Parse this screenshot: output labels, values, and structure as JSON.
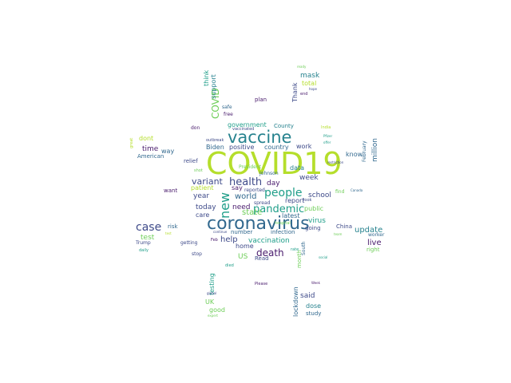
{
  "palette": {
    "purple": "#481a6c",
    "indigo": "#3e4a89",
    "blue": "#31688e",
    "teal": "#26828e",
    "green": "#1f9e89",
    "lime": "#6ece58",
    "yellowgreen": "#b5de2b",
    "yellow": "#fde725"
  },
  "words": [
    {
      "text": "COVID19",
      "color": "yellowgreen"
    },
    {
      "text": "coronavirus",
      "color": "blue"
    },
    {
      "text": "vaccine",
      "color": "teal"
    },
    {
      "text": "case",
      "color": "indigo"
    },
    {
      "text": "new",
      "color": "green"
    },
    {
      "text": "people",
      "color": "green"
    },
    {
      "text": "pandemic",
      "color": "green"
    },
    {
      "text": "health",
      "color": "indigo"
    },
    {
      "text": "death",
      "color": "purple"
    },
    {
      "text": "COVID",
      "color": "lime"
    },
    {
      "text": "variant",
      "color": "indigo"
    },
    {
      "text": "test",
      "color": "lime"
    },
    {
      "text": "vaccination",
      "color": "green"
    },
    {
      "text": "help",
      "color": "indigo"
    },
    {
      "text": "update",
      "color": "teal"
    },
    {
      "text": "live",
      "color": "purple"
    },
    {
      "text": "world",
      "color": "blue"
    },
    {
      "text": "state",
      "color": "lime"
    },
    {
      "text": "need",
      "color": "purple"
    },
    {
      "text": "today",
      "color": "indigo"
    },
    {
      "text": "year",
      "color": "indigo"
    },
    {
      "text": "mask",
      "color": "teal"
    },
    {
      "text": "school",
      "color": "indigo"
    },
    {
      "text": "virus",
      "color": "green"
    },
    {
      "text": "week",
      "color": "indigo"
    },
    {
      "text": "day",
      "color": "purple"
    },
    {
      "text": "report",
      "color": "indigo"
    },
    {
      "text": "data",
      "color": "teal"
    },
    {
      "text": "public",
      "color": "lime"
    },
    {
      "text": "government",
      "color": "green"
    },
    {
      "text": "positive",
      "color": "indigo"
    },
    {
      "text": "Biden",
      "color": "blue"
    },
    {
      "text": "work",
      "color": "indigo"
    },
    {
      "text": "country",
      "color": "blue"
    },
    {
      "text": "time",
      "color": "purple"
    },
    {
      "text": "dont",
      "color": "yellowgreen"
    },
    {
      "text": "way",
      "color": "blue"
    },
    {
      "text": "American",
      "color": "blue"
    },
    {
      "text": "relief",
      "color": "indigo"
    },
    {
      "text": "US",
      "color": "lime"
    },
    {
      "text": "home",
      "color": "indigo"
    },
    {
      "text": "Read",
      "color": "indigo"
    },
    {
      "text": "number",
      "color": "blue"
    },
    {
      "text": "infection",
      "color": "blue"
    },
    {
      "text": "care",
      "color": "indigo"
    },
    {
      "text": "patient",
      "color": "yellowgreen"
    },
    {
      "text": "say",
      "color": "purple"
    },
    {
      "text": "spread",
      "color": "indigo"
    },
    {
      "text": "reported",
      "color": "indigo"
    },
    {
      "text": "latest",
      "color": "blue"
    },
    {
      "text": "going",
      "color": "indigo"
    },
    {
      "text": "said",
      "color": "indigo"
    },
    {
      "text": "dose",
      "color": "teal"
    },
    {
      "text": "study",
      "color": "blue"
    },
    {
      "text": "good",
      "color": "lime"
    },
    {
      "text": "UK",
      "color": "lime"
    },
    {
      "text": "China",
      "color": "indigo"
    },
    {
      "text": "risk",
      "color": "blue"
    },
    {
      "text": "worker",
      "color": "blue"
    },
    {
      "text": "right",
      "color": "lime"
    },
    {
      "text": "know",
      "color": "blue"
    },
    {
      "text": "plan",
      "color": "purple"
    },
    {
      "text": "total",
      "color": "yellowgreen"
    },
    {
      "text": "support",
      "color": "teal"
    },
    {
      "text": "think",
      "color": "green"
    },
    {
      "text": "Thank",
      "color": "indigo"
    },
    {
      "text": "million",
      "color": "blue"
    },
    {
      "text": "February",
      "color": "blue"
    },
    {
      "text": "County",
      "color": "teal"
    },
    {
      "text": "President",
      "color": "lime"
    },
    {
      "text": "Johnson",
      "color": "blue"
    },
    {
      "text": "want",
      "color": "purple"
    },
    {
      "text": "getting",
      "color": "indigo"
    },
    {
      "text": "Trump",
      "color": "indigo"
    },
    {
      "text": "lockdown",
      "color": "blue"
    },
    {
      "text": "testing",
      "color": "green"
    },
    {
      "text": "month",
      "color": "lime"
    },
    {
      "text": "free",
      "color": "purple"
    },
    {
      "text": "safe",
      "color": "blue"
    },
    {
      "text": "vaccinated",
      "color": "indigo"
    },
    {
      "text": "outbreak",
      "color": "indigo"
    },
    {
      "text": "don",
      "color": "purple"
    },
    {
      "text": "Please",
      "color": "purple"
    },
    {
      "text": "stop",
      "color": "indigo"
    },
    {
      "text": "daily",
      "color": "green"
    },
    {
      "text": "continue",
      "color": "indigo"
    },
    {
      "text": "find",
      "color": "lime"
    },
    {
      "text": "India",
      "color": "yellowgreen"
    },
    {
      "text": "social",
      "color": "green"
    },
    {
      "text": "rate",
      "color": "green"
    },
    {
      "text": "Feb",
      "color": "purple"
    },
    {
      "text": "died",
      "color": "green"
    },
    {
      "text": "global",
      "color": "indigo"
    },
    {
      "text": "end",
      "color": "purple"
    },
    {
      "text": "hope",
      "color": "indigo"
    },
    {
      "text": "South",
      "color": "blue"
    },
    {
      "text": "hospital",
      "color": "lime"
    },
    {
      "text": "look",
      "color": "indigo"
    },
    {
      "text": "Week",
      "color": "purple"
    },
    {
      "text": "Canada",
      "color": "blue"
    },
    {
      "text": "Pfizer",
      "color": "green"
    },
    {
      "text": "restriction",
      "color": "indigo"
    },
    {
      "text": "shot",
      "color": "lime"
    },
    {
      "text": "ready",
      "color": "lime"
    },
    {
      "text": "offer",
      "color": "green"
    },
    {
      "text": "great",
      "color": "yellowgreen"
    },
    {
      "text": "test",
      "color": "yellowgreen"
    },
    {
      "text": "expert",
      "color": "lime"
    },
    {
      "text": "team",
      "color": "lime"
    }
  ]
}
